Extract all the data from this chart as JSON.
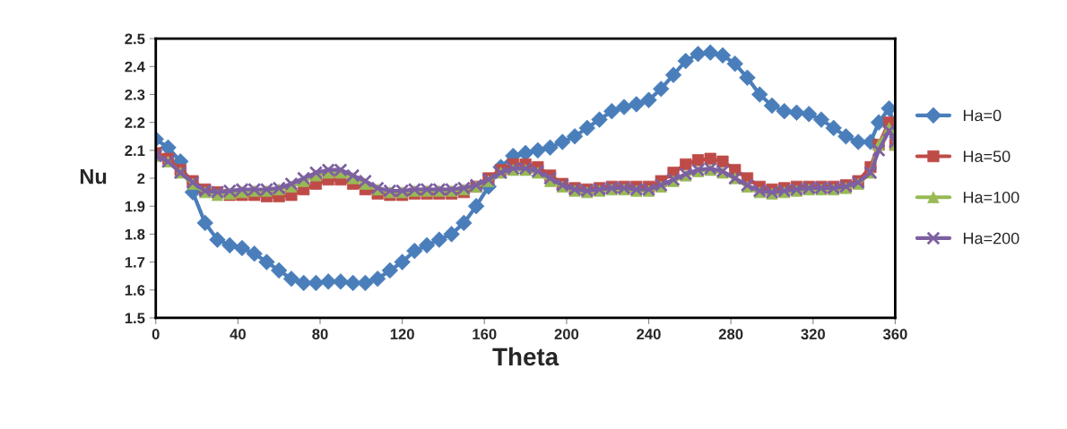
{
  "chart_data": {
    "type": "line",
    "xlabel": "Theta",
    "ylabel": "Nu",
    "x": [
      0,
      6,
      12,
      18,
      24,
      30,
      36,
      42,
      48,
      54,
      60,
      66,
      72,
      78,
      84,
      90,
      96,
      102,
      108,
      114,
      120,
      126,
      132,
      138,
      144,
      150,
      156,
      162,
      168,
      174,
      180,
      186,
      192,
      198,
      204,
      210,
      216,
      222,
      228,
      234,
      240,
      246,
      252,
      258,
      264,
      270,
      276,
      282,
      288,
      294,
      300,
      306,
      312,
      318,
      324,
      330,
      336,
      342,
      348,
      352,
      357,
      360
    ],
    "xlim": [
      0,
      360
    ],
    "xticks": [
      0,
      40,
      80,
      120,
      160,
      200,
      240,
      280,
      320,
      360
    ],
    "ylim": [
      1.5,
      2.5
    ],
    "yticks": [
      1.5,
      1.6,
      1.7,
      1.8,
      1.9,
      2,
      2.1,
      2.2,
      2.3,
      2.4,
      2.5
    ],
    "grid": false,
    "legend": "right",
    "series": [
      {
        "name": "Ha=0",
        "color": "#4a7ebb",
        "marker": "diamond",
        "values": [
          2.14,
          2.11,
          2.06,
          1.95,
          1.84,
          1.78,
          1.76,
          1.75,
          1.73,
          1.7,
          1.67,
          1.64,
          1.625,
          1.625,
          1.63,
          1.63,
          1.625,
          1.625,
          1.64,
          1.67,
          1.7,
          1.74,
          1.76,
          1.78,
          1.8,
          1.84,
          1.9,
          1.97,
          2.04,
          2.08,
          2.09,
          2.1,
          2.11,
          2.13,
          2.15,
          2.18,
          2.21,
          2.24,
          2.255,
          2.265,
          2.28,
          2.32,
          2.37,
          2.42,
          2.445,
          2.45,
          2.44,
          2.41,
          2.36,
          2.3,
          2.26,
          2.24,
          2.235,
          2.23,
          2.21,
          2.18,
          2.15,
          2.13,
          2.13,
          2.2,
          2.25,
          2.18
        ]
      },
      {
        "name": "Ha=50",
        "color": "#be4b48",
        "marker": "square",
        "values": [
          2.09,
          2.07,
          2.03,
          1.99,
          1.96,
          1.95,
          1.94,
          1.94,
          1.94,
          1.935,
          1.935,
          1.94,
          1.96,
          1.98,
          1.995,
          1.995,
          1.98,
          1.96,
          1.945,
          1.94,
          1.94,
          1.945,
          1.945,
          1.945,
          1.945,
          1.95,
          1.97,
          2.0,
          2.03,
          2.05,
          2.05,
          2.04,
          2.01,
          1.98,
          1.965,
          1.96,
          1.965,
          1.97,
          1.97,
          1.97,
          1.97,
          1.99,
          2.02,
          2.05,
          2.065,
          2.07,
          2.06,
          2.03,
          2.0,
          1.97,
          1.96,
          1.965,
          1.97,
          1.97,
          1.97,
          1.97,
          1.975,
          1.99,
          2.04,
          2.12,
          2.2,
          2.12
        ]
      },
      {
        "name": "Ha=100",
        "color": "#98b954",
        "marker": "triangle",
        "values": [
          2.08,
          2.06,
          2.02,
          1.98,
          1.95,
          1.94,
          1.945,
          1.95,
          1.955,
          1.955,
          1.96,
          1.97,
          1.99,
          2.01,
          2.02,
          2.02,
          2.0,
          1.98,
          1.96,
          1.95,
          1.95,
          1.955,
          1.955,
          1.955,
          1.955,
          1.96,
          1.97,
          1.99,
          2.02,
          2.03,
          2.03,
          2.02,
          1.99,
          1.97,
          1.955,
          1.95,
          1.955,
          1.96,
          1.96,
          1.955,
          1.955,
          1.97,
          1.99,
          2.01,
          2.025,
          2.03,
          2.02,
          2.0,
          1.97,
          1.95,
          1.945,
          1.95,
          1.955,
          1.96,
          1.96,
          1.96,
          1.965,
          1.98,
          2.02,
          2.12,
          2.18,
          2.12
        ]
      },
      {
        "name": "Ha=200",
        "color": "#7d60a0",
        "marker": "cross",
        "values": [
          2.08,
          2.06,
          2.02,
          1.985,
          1.955,
          1.95,
          1.955,
          1.96,
          1.96,
          1.96,
          1.965,
          1.98,
          2.0,
          2.02,
          2.03,
          2.03,
          2.01,
          1.99,
          1.965,
          1.955,
          1.955,
          1.96,
          1.96,
          1.96,
          1.96,
          1.965,
          1.975,
          1.995,
          2.02,
          2.035,
          2.035,
          2.025,
          2.0,
          1.975,
          1.96,
          1.955,
          1.96,
          1.965,
          1.965,
          1.96,
          1.96,
          1.975,
          1.995,
          2.015,
          2.03,
          2.035,
          2.025,
          2.0,
          1.975,
          1.955,
          1.95,
          1.955,
          1.96,
          1.965,
          1.965,
          1.965,
          1.97,
          1.985,
          2.02,
          2.1,
          2.17,
          2.13
        ]
      }
    ]
  }
}
